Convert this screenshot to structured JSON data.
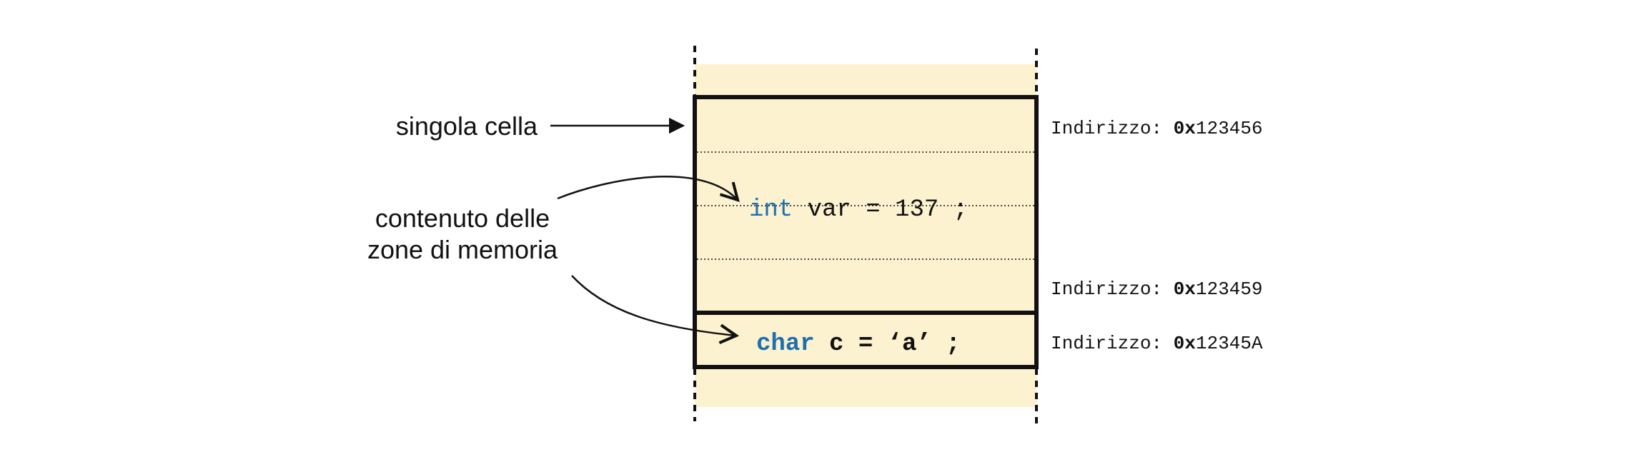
{
  "labels": {
    "single_cell": "singola cella",
    "content_line1": "contenuto delle",
    "content_line2": "zone di memoria"
  },
  "code": {
    "int_keyword": "int",
    "int_rest": " var = 137 ;",
    "char_keyword": "char",
    "char_rest": " c = ‘a’ ;"
  },
  "addresses": [
    {
      "label": "Indirizzo: ",
      "prefix": "0x",
      "value": "123456"
    },
    {
      "label": "Indirizzo: ",
      "prefix": "0x",
      "value": "123459"
    },
    {
      "label": "Indirizzo: ",
      "prefix": "0x",
      "value": "12345A"
    }
  ],
  "colors": {
    "memory_fill": "#fcf2cf",
    "keyword": "#1f6fb0",
    "border": "#111111"
  }
}
